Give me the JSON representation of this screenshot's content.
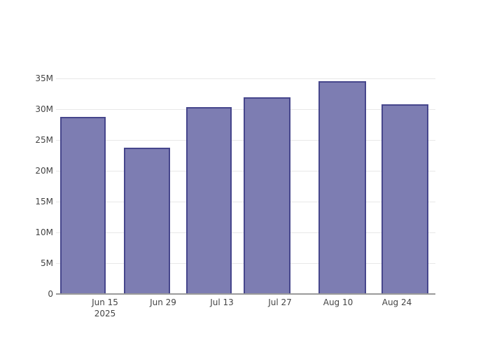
{
  "chart_data": {
    "type": "bar",
    "title": "",
    "xlabel": "",
    "ylabel": "",
    "categories": [
      "Jun 15",
      "Jun 29",
      "Jul 13",
      "Jul 27",
      "Aug 10",
      "Aug 24"
    ],
    "x_year_label": "2025",
    "values": [
      28800000,
      23800000,
      30300000,
      31900000,
      34600000,
      30800000
    ],
    "values_millions": [
      28.8,
      23.8,
      30.3,
      31.9,
      34.6,
      30.8
    ],
    "y_tick_labels": [
      "0",
      "5M",
      "10M",
      "15M",
      "20M",
      "25M",
      "30M",
      "35M"
    ],
    "y_tick_values_millions": [
      0,
      5,
      10,
      15,
      20,
      25,
      30,
      35
    ],
    "ylim_millions": [
      0,
      35
    ],
    "grid": true,
    "legend": false,
    "legend_position": "none"
  },
  "colors": {
    "background": "#ffffff",
    "bar_fill": "#7d7db2",
    "bar_border": "#46468c",
    "gridline": "#e8e8e8",
    "axis_line": "#9a9a9a",
    "tick_text": "#444444"
  }
}
